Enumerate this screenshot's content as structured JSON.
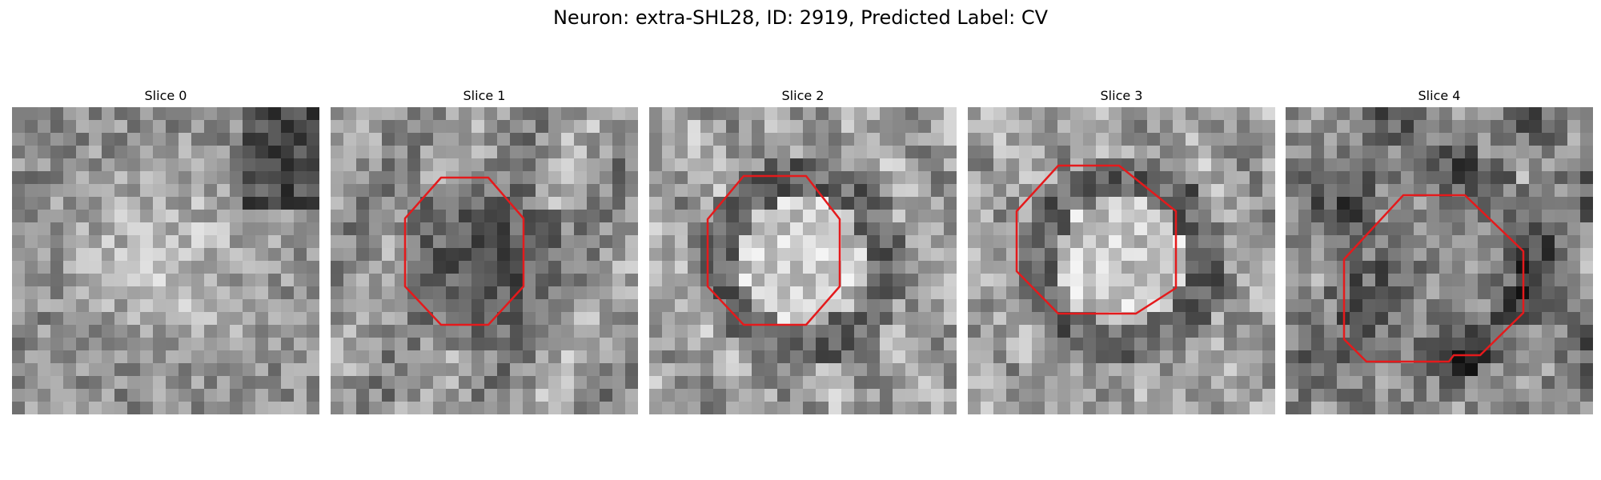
{
  "figure": {
    "title": "Neuron: extra-SHL28, ID: 2919, Predicted Label: CV"
  },
  "panels": [
    {
      "title": "Slice 0",
      "has_outline": false,
      "outline_color": "#e41a1c",
      "seed": 11,
      "pattern": "bright-center"
    },
    {
      "title": "Slice 1",
      "has_outline": true,
      "outline_color": "#e41a1c",
      "seed": 23,
      "pattern": "dark-core"
    },
    {
      "title": "Slice 2",
      "has_outline": true,
      "outline_color": "#e41a1c",
      "seed": 37,
      "pattern": "bright-core"
    },
    {
      "title": "Slice 3",
      "has_outline": true,
      "outline_color": "#e41a1c",
      "seed": 51,
      "pattern": "bright-core"
    },
    {
      "title": "Slice 4",
      "has_outline": true,
      "outline_color": "#e41a1c",
      "seed": 67,
      "pattern": "mixed"
    }
  ]
}
